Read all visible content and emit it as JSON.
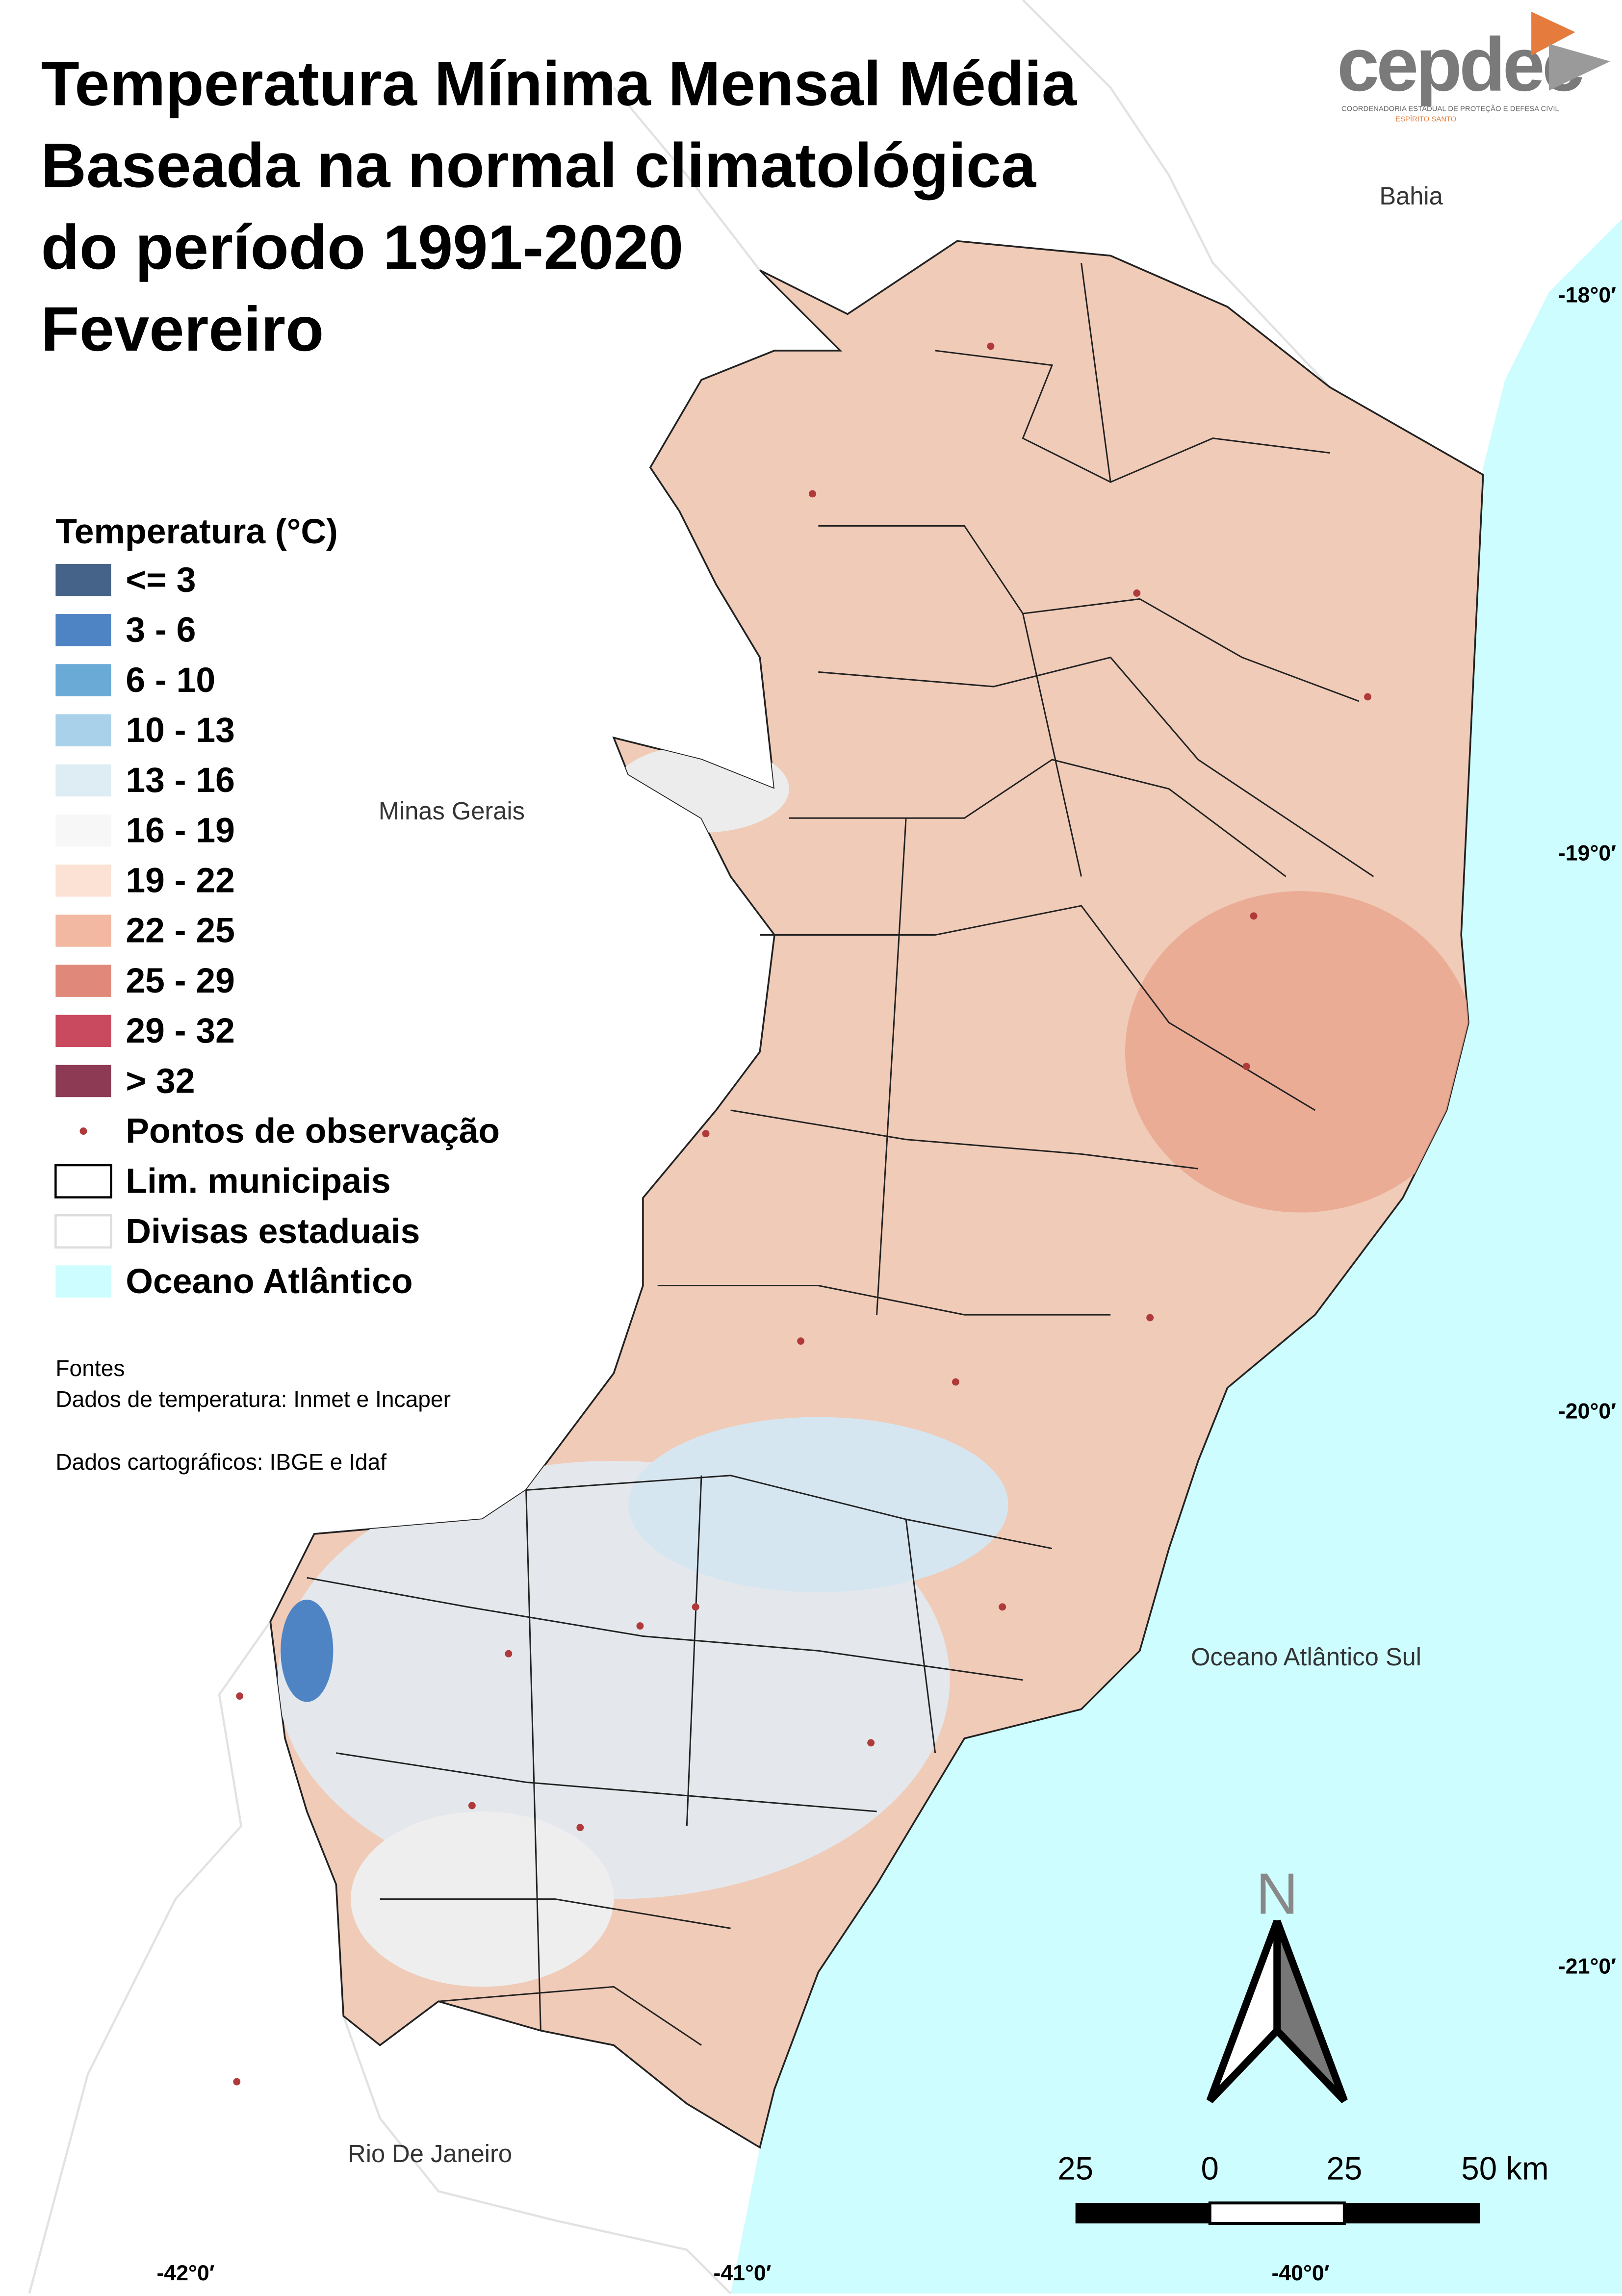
{
  "title": [
    "Temperatura Mínima Mensal Média",
    "Baseada na normal climatológica",
    "do período 1991-2020",
    "Fevereiro"
  ],
  "logo": {
    "name": "cepdec",
    "subtitle": "COORDENADORIA ESTADUAL DE PROTEÇÃO E DEFESA CIVIL",
    "state": "ESPÍRITO SANTO"
  },
  "legend": {
    "title": "Temperatura (°C)",
    "classes": [
      {
        "label": "<= 3",
        "color": "#456388"
      },
      {
        "label": "3 - 6",
        "color": "#4f84c4"
      },
      {
        "label": "6 - 10",
        "color": "#6aaad6"
      },
      {
        "label": "10 - 13",
        "color": "#a9d1ea"
      },
      {
        "label": "13 - 16",
        "color": "#deecf4"
      },
      {
        "label": "16 - 19",
        "color": "#f7f7f7"
      },
      {
        "label": "19 - 22",
        "color": "#fbe2d5"
      },
      {
        "label": "22 - 25",
        "color": "#f2b8a2"
      },
      {
        "label": "25 - 29",
        "color": "#e0887a"
      },
      {
        "label": "29 - 32",
        "color": "#c9495e"
      },
      {
        "label": "> 32",
        "color": "#8d3a55"
      }
    ],
    "others": [
      "Pontos de observação",
      "Lim. municipais",
      "Divisas estaduais",
      "Oceano Atlântico"
    ]
  },
  "sources": [
    "Fontes",
    "Dados de temperatura: Inmet e Incaper",
    "Dados cartográficos: IBGE e Idaf"
  ],
  "places": [
    "Bahia",
    "Minas Gerais",
    "Oceano Atlântico Sul",
    "Rio De Janeiro"
  ],
  "latitudes": [
    "-18°0′",
    "-19°0′",
    "-20°0′",
    "-21°0′"
  ],
  "longitudes": [
    "-42°0′",
    "-41°0′",
    "-40°0′"
  ],
  "scale": [
    "25",
    "0",
    "25",
    "50 km"
  ],
  "north": "N"
}
